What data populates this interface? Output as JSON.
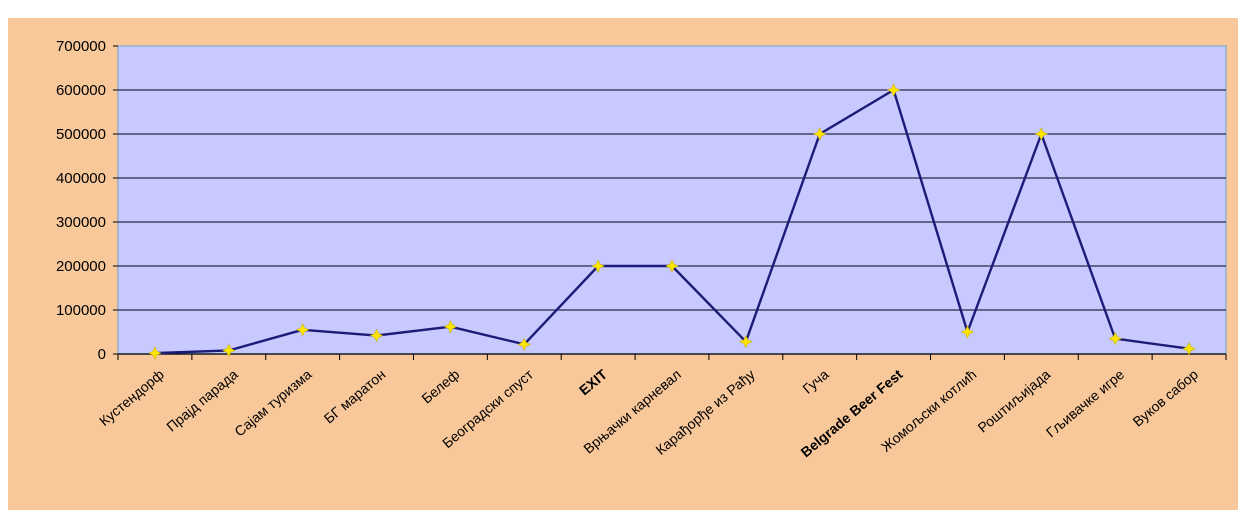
{
  "chart_data": {
    "type": "line",
    "title": "",
    "xlabel": "",
    "ylabel": "",
    "ylim": [
      0,
      700000
    ],
    "yticks": [
      0,
      100000,
      200000,
      300000,
      400000,
      500000,
      600000,
      700000
    ],
    "ytick_labels": [
      "0",
      "100000",
      "200000",
      "300000",
      "400000",
      "500000",
      "600000",
      "700000"
    ],
    "grid": true,
    "legend": "none",
    "categories": [
      "Кустендорф",
      "Прајд парада",
      "Сајам туризма",
      "БГ маратон",
      "Белеф",
      "Београдски спуст",
      "EXIT",
      "Врњачки карневал",
      "Карађорђе из Рађу",
      "Гуча",
      "Belgrade Beer Fest",
      "Жомољски котлић",
      "Роштиљијада",
      "Гљивачке игре",
      "Вуков сабор"
    ],
    "series": [
      {
        "values": [
          2000,
          8000,
          55000,
          42000,
          62000,
          22000,
          200000,
          200000,
          28000,
          500000,
          600000,
          50000,
          500000,
          35000,
          12000
        ]
      }
    ],
    "colors": {
      "outer_background": "#f9c89a",
      "plot_background": "#c7c9ff",
      "plot_border": "#8fb0d0",
      "grid": "#2a2a40",
      "line": "#1c1c78",
      "marker": "#ffe600"
    }
  }
}
